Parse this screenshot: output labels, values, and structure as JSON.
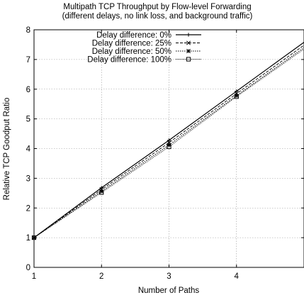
{
  "chart_data": {
    "type": "line",
    "title": "Multipath TCP Throughput by Flow-level Forwarding",
    "subtitle": "(different delays, no link loss, and background traffic)",
    "xlabel": "Number of Paths",
    "ylabel": "Relative TCP Goodput Ratio",
    "xlim": [
      1,
      5
    ],
    "ylim": [
      0,
      8
    ],
    "xticks": [
      1,
      2,
      3,
      4
    ],
    "yticks": [
      0,
      1,
      2,
      3,
      4,
      5,
      6,
      7,
      8
    ],
    "grid": true,
    "legend_position": "top-left",
    "x": [
      1,
      2,
      3,
      4,
      5
    ],
    "series": [
      {
        "name": "Delay difference: 0%",
        "values": [
          1.0,
          2.68,
          4.28,
          5.93,
          7.58
        ],
        "color": "#000000",
        "marker": "plus",
        "dash": "solid"
      },
      {
        "name": "Delay difference: 25%",
        "values": [
          1.0,
          2.62,
          4.2,
          5.85,
          7.48
        ],
        "color": "#000000",
        "marker": "cross",
        "dash": "dashed"
      },
      {
        "name": "Delay difference: 50%",
        "values": [
          1.0,
          2.56,
          4.12,
          5.78,
          7.4
        ],
        "color": "#000000",
        "marker": "star",
        "dash": "dotted"
      },
      {
        "name": "Delay difference: 100%",
        "values": [
          1.0,
          2.52,
          4.06,
          5.75,
          7.35
        ],
        "color": "#000000",
        "marker": "square",
        "dash": "dashdot"
      }
    ]
  }
}
